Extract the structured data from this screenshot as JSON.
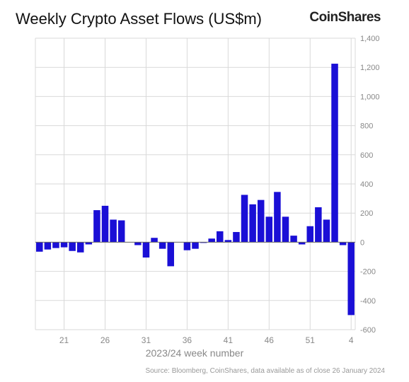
{
  "chart_data": {
    "type": "bar",
    "title": "Weekly Crypto Asset Flows (US$m)",
    "brand": "CoinShares",
    "xlabel": "2023/24 week number",
    "ylabel": "",
    "source": "Source: Bloomberg, CoinShares, data available as of close 26 January 2024",
    "ylim": [
      -600,
      1400
    ],
    "yticks": [
      -600,
      -400,
      -200,
      0,
      200,
      400,
      600,
      800,
      1000,
      1200,
      1400
    ],
    "ytick_labels": [
      "-600",
      "-400",
      "-200",
      "0",
      "200",
      "400",
      "600",
      "800",
      "1,000",
      "1,200",
      "1,400"
    ],
    "xtick_labels": [
      {
        "label": "21",
        "index": 3
      },
      {
        "label": "26",
        "index": 8
      },
      {
        "label": "31",
        "index": 13
      },
      {
        "label": "36",
        "index": 18
      },
      {
        "label": "41",
        "index": 23
      },
      {
        "label": "46",
        "index": 28
      },
      {
        "label": "51",
        "index": 33
      },
      {
        "label": "4",
        "index": 38
      }
    ],
    "grid": true,
    "bar_color": "#1a0fd6",
    "values": [
      -65,
      -50,
      -40,
      -35,
      -60,
      -70,
      -15,
      220,
      250,
      155,
      150,
      0,
      -20,
      -105,
      30,
      -45,
      -165,
      0,
      -55,
      -45,
      -5,
      25,
      75,
      15,
      70,
      325,
      260,
      290,
      175,
      345,
      175,
      45,
      -15,
      110,
      240,
      155,
      1225,
      -20,
      -500
    ]
  }
}
